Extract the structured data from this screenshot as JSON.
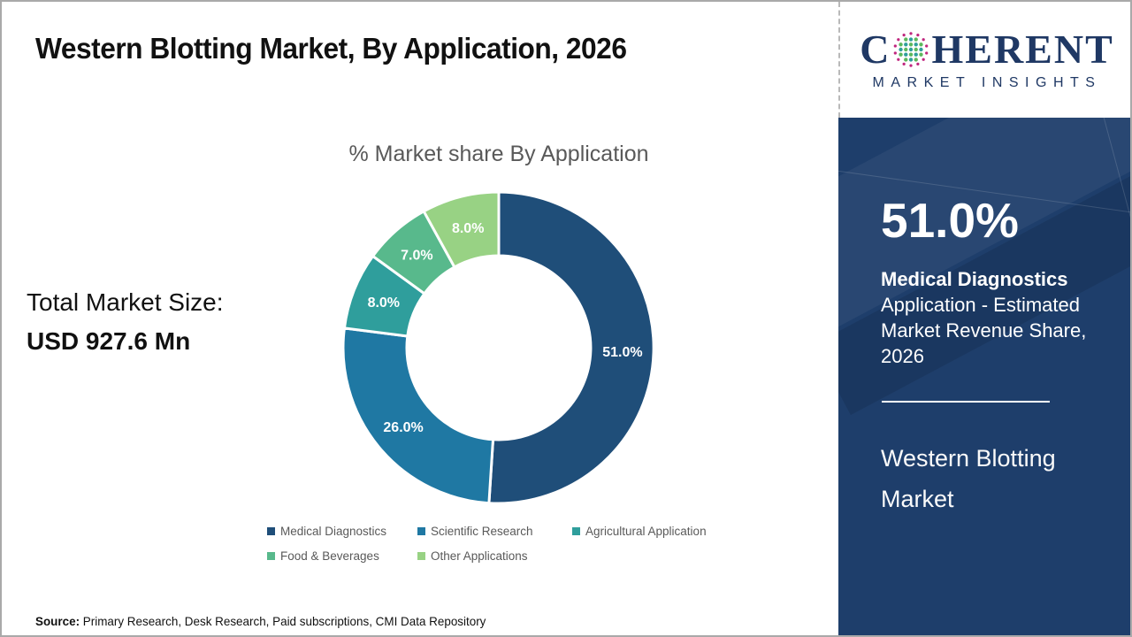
{
  "header": {
    "title": "Western Blotting Market, By Application, 2026"
  },
  "logo": {
    "word_prefix": "C",
    "word_suffix": "HERENT",
    "subtitle": "MARKET INSIGHTS",
    "brand_color": "#1f3864"
  },
  "left_panel": {
    "total_label": "Total Market Size:",
    "total_value": "USD 927.6 Mn"
  },
  "chart_data": {
    "type": "pie",
    "donut": true,
    "hole_ratio": 0.59,
    "title": "% Market share By Application",
    "categories": [
      "Medical Diagnostics",
      "Scientific Research",
      "Agricultural Application",
      "Food & Beverages",
      "Other Applications"
    ],
    "values": [
      51.0,
      26.0,
      8.0,
      7.0,
      8.0
    ],
    "labels": [
      "51.0%",
      "26.0%",
      "8.0%",
      "7.0%",
      "8.0%"
    ],
    "colors": [
      "#1f4e79",
      "#1f78a3",
      "#2f9e9c",
      "#58b98c",
      "#98d284"
    ],
    "start_angle_deg": 0,
    "direction": "clockwise",
    "legend_position": "bottom",
    "label_color": "#ffffff"
  },
  "sidebar": {
    "stat_value": "51.0%",
    "stat_bold": "Medical Diagnostics",
    "stat_rest": "Application - Estimated Market Revenue Share, 2026",
    "market_name": "Western Blotting Market",
    "background_color": "#1e3e6b"
  },
  "footer": {
    "source_label": "Source:",
    "source_text": "Primary Research, Desk Research, Paid subscriptions, CMI Data Repository"
  }
}
